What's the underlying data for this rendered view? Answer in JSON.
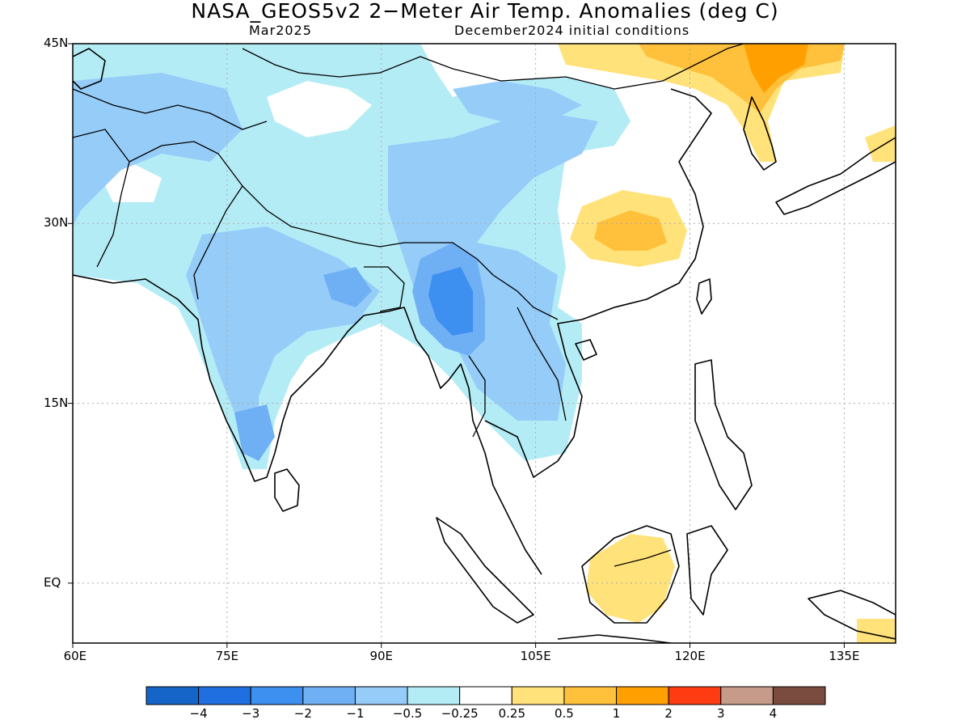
{
  "title": "NASA_GEOS5v2 2−Meter Air Temp. Anomalies (deg C)",
  "subtitle_left": "Mar2025",
  "subtitle_right": "December2024 initial conditions",
  "map": {
    "extent": {
      "lon_min": 60,
      "lon_max": 140,
      "lat_min": -5,
      "lat_max": 45
    },
    "lat_ticks": [
      {
        "lat": 45,
        "label": "45N"
      },
      {
        "lat": 30,
        "label": "30N"
      },
      {
        "lat": 15,
        "label": "15N"
      },
      {
        "lat": 0,
        "label": "EQ"
      }
    ],
    "lon_ticks": [
      {
        "lon": 60,
        "label": "60E"
      },
      {
        "lon": 75,
        "label": "75E"
      },
      {
        "lon": 90,
        "label": "90E"
      },
      {
        "lon": 105,
        "label": "105E"
      },
      {
        "lon": 120,
        "label": "120E"
      },
      {
        "lon": 135,
        "label": "135E"
      }
    ],
    "grid": "dotted"
  },
  "colorbar": {
    "colors": [
      "#1565c8",
      "#1f6fe0",
      "#3d8ff0",
      "#6fb0f5",
      "#96ccf8",
      "#b4ecf6",
      "#ffffff",
      "#ffe27a",
      "#ffc03b",
      "#ff9f00",
      "#ff3b12",
      "#c69b8a",
      "#7a4c3f"
    ],
    "labels": [
      "−4",
      "−3",
      "−2",
      "−1",
      "−0.5",
      "−0.25",
      "0.25",
      "0.5",
      "1",
      "2",
      "3",
      "4"
    ]
  },
  "anomaly_regions": [
    {
      "name": "Central Asia / Pakistan / Tibet",
      "level": -1
    },
    {
      "name": "Indian subcontinent",
      "level": -1
    },
    {
      "name": "Myanmar / Yunnan",
      "level": -2
    },
    {
      "name": "Indochina",
      "level": -1
    },
    {
      "name": "Central China",
      "level": 0.5
    },
    {
      "name": "Northeast China / Korea",
      "level": 1
    },
    {
      "name": "Japan",
      "level": 0.5
    },
    {
      "name": "Borneo",
      "level": 0.25
    },
    {
      "name": "New Guinea",
      "level": 0.5
    }
  ]
}
